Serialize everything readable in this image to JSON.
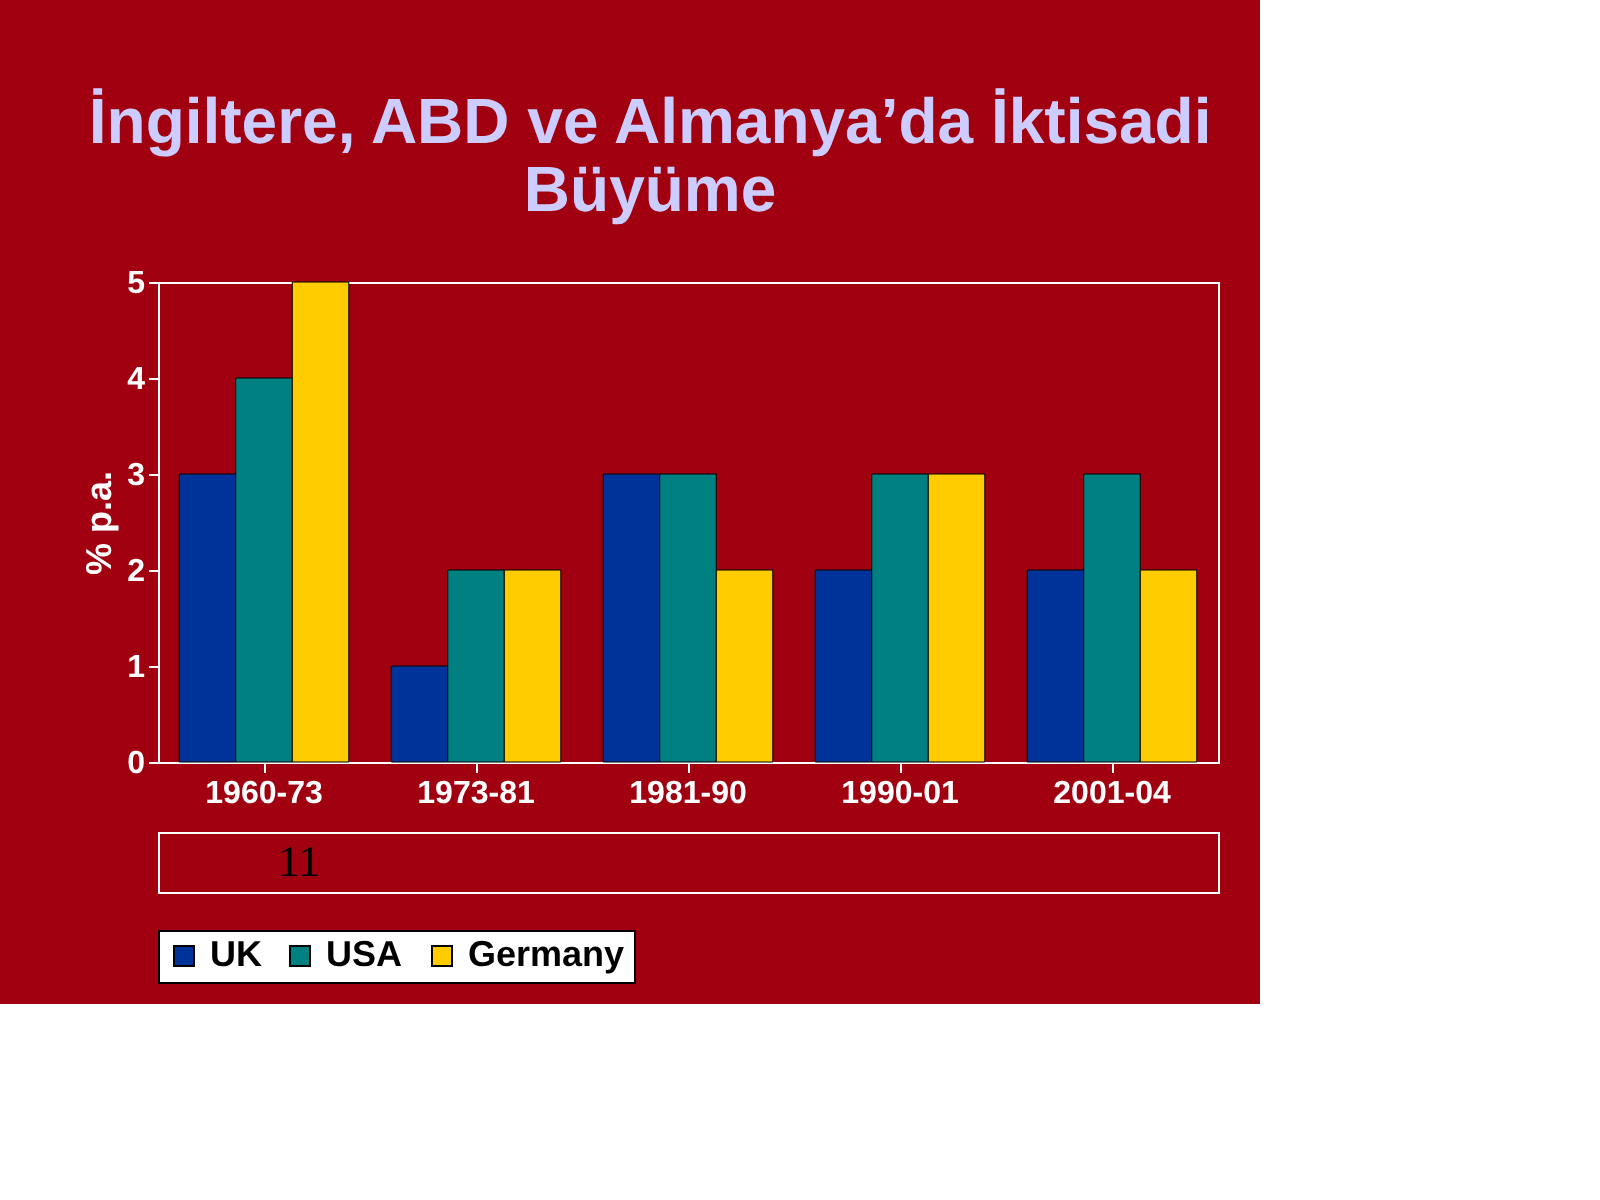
{
  "chart_data": {
    "type": "bar",
    "title": "İngiltere, ABD ve Almanya’da İktisadi Büyüme",
    "ylabel": "% p.a.",
    "categories": [
      "1960-73",
      "1973-81",
      "1981-90",
      "1990-01",
      "2001-04"
    ],
    "series": [
      {
        "name": "UK",
        "color": "#003399",
        "values": [
          3,
          1,
          3,
          2,
          2
        ]
      },
      {
        "name": "USA",
        "color": "#008080",
        "values": [
          4,
          2,
          3,
          3,
          3
        ]
      },
      {
        "name": "Germany",
        "color": "#ffcc00",
        "values": [
          5,
          2,
          2,
          3,
          2
        ]
      }
    ],
    "ylim": [
      0,
      5
    ],
    "yticks": [
      0,
      1,
      2,
      3,
      4,
      5
    ],
    "grid": false,
    "legend": "bottom",
    "annotations": [
      "11"
    ]
  }
}
